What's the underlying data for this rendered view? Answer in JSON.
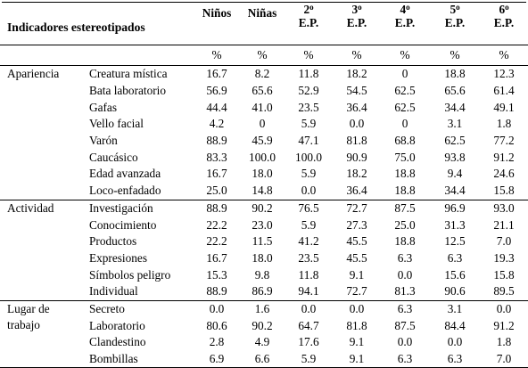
{
  "header": {
    "title": "Indicadores estereotipados",
    "columns": [
      {
        "label": "Niños"
      },
      {
        "label": "Niñas"
      },
      {
        "num": "2",
        "sup": "o",
        "sub": "E.P."
      },
      {
        "num": "3",
        "sup": "o",
        "sub": "E.P."
      },
      {
        "num": "4",
        "sup": "o",
        "sub": "E.P."
      },
      {
        "num": "5",
        "sup": "o",
        "sub": "E.P."
      },
      {
        "num": "6",
        "sup": "o",
        "sub": "E.P."
      }
    ],
    "unit": "%"
  },
  "groups": [
    {
      "category": "Apariencia",
      "rows": [
        {
          "label": "Creatura mística",
          "values": [
            "16.7",
            "8.2",
            "11.8",
            "18.2",
            "0",
            "18.8",
            "12.3"
          ]
        },
        {
          "label": "Bata laboratorio",
          "values": [
            "56.9",
            "65.6",
            "52.9",
            "54.5",
            "62.5",
            "65.6",
            "61.4"
          ]
        },
        {
          "label": "Gafas",
          "values": [
            "44.4",
            "41.0",
            "23.5",
            "36.4",
            "62.5",
            "34.4",
            "49.1"
          ]
        },
        {
          "label": "Vello facial",
          "values": [
            "4.2",
            "0",
            "5.9",
            "0.0",
            "0",
            "3.1",
            "1.8"
          ]
        },
        {
          "label": "Varón",
          "values": [
            "88.9",
            "45.9",
            "47.1",
            "81.8",
            "68.8",
            "62.5",
            "77.2"
          ]
        },
        {
          "label": "Caucásico",
          "values": [
            "83.3",
            "100.0",
            "100.0",
            "90.9",
            "75.0",
            "93.8",
            "91.2"
          ]
        },
        {
          "label": "Edad avanzada",
          "values": [
            "16.7",
            "18.0",
            "5.9",
            "18.2",
            "18.8",
            "9.4",
            "24.6"
          ]
        },
        {
          "label": "Loco-enfadado",
          "values": [
            "25.0",
            "14.8",
            "0.0",
            "36.4",
            "18.8",
            "34.4",
            "15.8"
          ]
        }
      ]
    },
    {
      "category": "Actividad",
      "rows": [
        {
          "label": "Investigación",
          "values": [
            "88.9",
            "90.2",
            "76.5",
            "72.7",
            "87.5",
            "96.9",
            "93.0"
          ]
        },
        {
          "label": "Conocimiento",
          "values": [
            "22.2",
            "23.0",
            "5.9",
            "27.3",
            "25.0",
            "31.3",
            "21.1"
          ]
        },
        {
          "label": "Productos",
          "values": [
            "22.2",
            "11.5",
            "41.2",
            "45.5",
            "18.8",
            "12.5",
            "7.0"
          ]
        },
        {
          "label": "Expresiones",
          "values": [
            "16.7",
            "18.0",
            "23.5",
            "45.5",
            "6.3",
            "6.3",
            "19.3"
          ]
        },
        {
          "label": "Símbolos peligro",
          "values": [
            "15.3",
            "9.8",
            "11.8",
            "9.1",
            "0.0",
            "15.6",
            "15.8"
          ]
        },
        {
          "label": "Individual",
          "values": [
            "88.9",
            "86.9",
            "94.1",
            "72.7",
            "81.3",
            "90.6",
            "89.5"
          ]
        }
      ]
    },
    {
      "category": "Lugar de",
      "category2": "trabajo",
      "rows": [
        {
          "label": "Secreto",
          "values": [
            "0.0",
            "1.6",
            "0.0",
            "0.0",
            "6.3",
            "3.1",
            "0.0"
          ]
        },
        {
          "label": "Laboratorio",
          "values": [
            "80.6",
            "90.2",
            "64.7",
            "81.8",
            "87.5",
            "84.4",
            "91.2"
          ]
        },
        {
          "label": "Clandestino",
          "values": [
            "2.8",
            "4.9",
            "17.6",
            "9.1",
            "0.0",
            "0.0",
            "1.8"
          ]
        },
        {
          "label": "Bombillas",
          "values": [
            "6.9",
            "6.6",
            "5.9",
            "9.1",
            "6.3",
            "6.3",
            "7.0"
          ]
        }
      ]
    }
  ]
}
